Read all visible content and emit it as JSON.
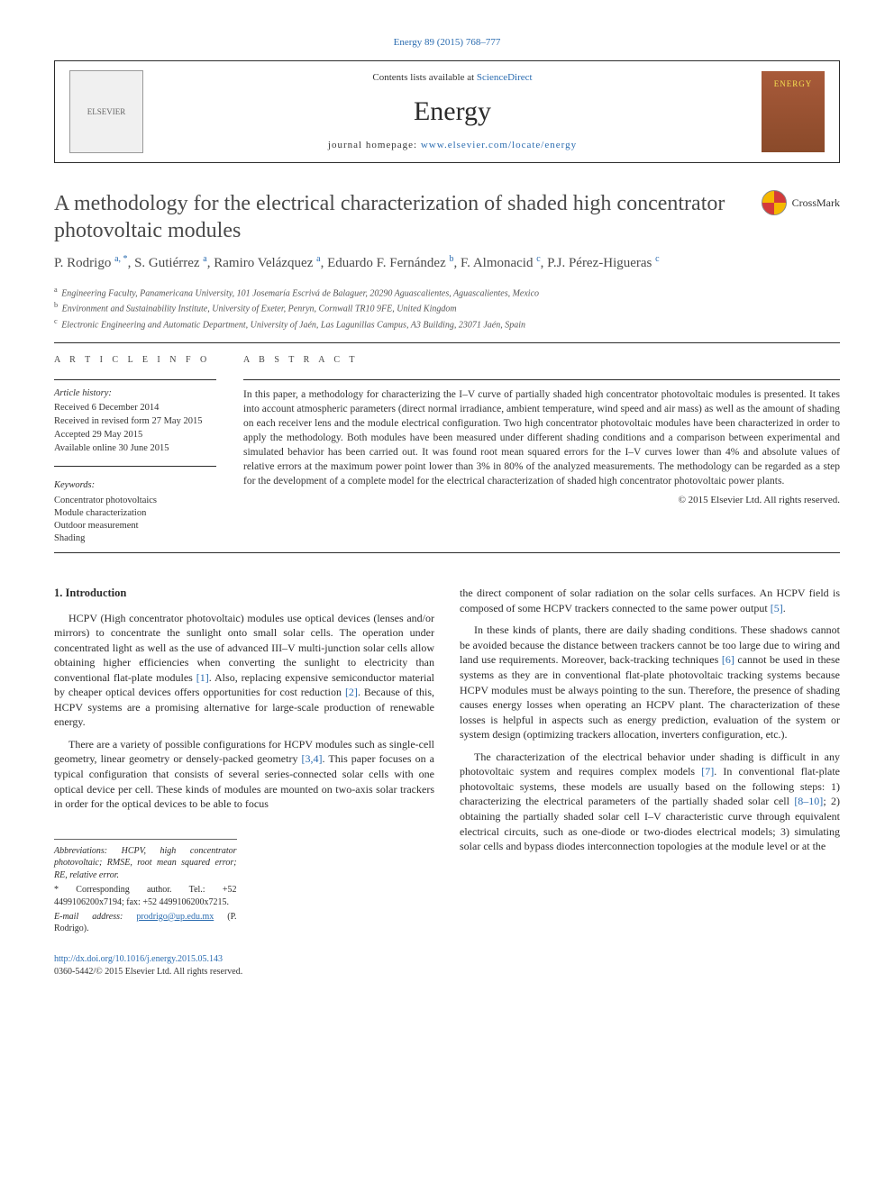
{
  "top_journal_link": "Energy 89 (2015) 768–777",
  "header": {
    "contents_prefix": "Contents lists available at ",
    "contents_link": "ScienceDirect",
    "journal_name": "Energy",
    "homepage_prefix": "journal homepage: ",
    "homepage_url": "www.elsevier.com/locate/energy",
    "publisher_logo_alt": "ELSEVIER"
  },
  "title": "A methodology for the electrical characterization of shaded high concentrator photovoltaic modules",
  "crossmark_label": "CrossMark",
  "authors_html": "P. Rodrigo <sup>a, *</sup>, S. Gutiérrez <sup>a</sup>, Ramiro Velázquez <sup>a</sup>, Eduardo F. Fernández <sup>b</sup>, F. Almonacid <sup>c</sup>, P.J. Pérez-Higueras <sup>c</sup>",
  "affiliations": {
    "a": "Engineering Faculty, Panamericana University, 101 Josemaría Escrivá de Balaguer, 20290 Aguascalientes, Aguascalientes, Mexico",
    "b": "Environment and Sustainability Institute, University of Exeter, Penryn, Cornwall TR10 9FE, United Kingdom",
    "c": "Electronic Engineering and Automatic Department, University of Jaén, Las Lagunillas Campus, A3 Building, 23071 Jaén, Spain"
  },
  "article_info_heading": "A R T I C L E  I N F O",
  "abstract_heading": "A B S T R A C T",
  "history": {
    "label": "Article history:",
    "received": "Received 6 December 2014",
    "revised": "Received in revised form 27 May 2015",
    "accepted": "Accepted 29 May 2015",
    "online": "Available online 30 June 2015"
  },
  "keywords_label": "Keywords:",
  "keywords": [
    "Concentrator photovoltaics",
    "Module characterization",
    "Outdoor measurement",
    "Shading"
  ],
  "abstract": "In this paper, a methodology for characterizing the I–V curve of partially shaded high concentrator photovoltaic modules is presented. It takes into account atmospheric parameters (direct normal irradiance, ambient temperature, wind speed and air mass) as well as the amount of shading on each receiver lens and the module electrical configuration. Two high concentrator photovoltaic modules have been characterized in order to apply the methodology. Both modules have been measured under different shading conditions and a comparison between experimental and simulated behavior has been carried out. It was found root mean squared errors for the I–V curves lower than 4% and absolute values of relative errors at the maximum power point lower than 3% in 80% of the analyzed measurements. The methodology can be regarded as a step for the development of a complete model for the electrical characterization of shaded high concentrator photovoltaic power plants.",
  "copyright": "© 2015 Elsevier Ltd. All rights reserved.",
  "section1_heading": "1. Introduction",
  "col1_p1": "HCPV (High concentrator photovoltaic) modules use optical devices (lenses and/or mirrors) to concentrate the sunlight onto small solar cells. The operation under concentrated light as well as the use of advanced III–V multi-junction solar cells allow obtaining higher efficiencies when converting the sunlight to electricity than conventional flat-plate modules [1]. Also, replacing expensive semiconductor material by cheaper optical devices offers opportunities for cost reduction [2]. Because of this, HCPV systems are a promising alternative for large-scale production of renewable energy.",
  "col1_p2": "There are a variety of possible configurations for HCPV modules such as single-cell geometry, linear geometry or densely-packed geometry [3,4]. This paper focuses on a typical configuration that consists of several series-connected solar cells with one optical device per cell. These kinds of modules are mounted on two-axis solar trackers in order for the optical devices to be able to focus",
  "col2_p1": "the direct component of solar radiation on the solar cells surfaces. An HCPV field is composed of some HCPV trackers connected to the same power output [5].",
  "col2_p2": "In these kinds of plants, there are daily shading conditions. These shadows cannot be avoided because the distance between trackers cannot be too large due to wiring and land use requirements. Moreover, back-tracking techniques [6] cannot be used in these systems as they are in conventional flat-plate photovoltaic tracking systems because HCPV modules must be always pointing to the sun. Therefore, the presence of shading causes energy losses when operating an HCPV plant. The characterization of these losses is helpful in aspects such as energy prediction, evaluation of the system or system design (optimizing trackers allocation, inverters configuration, etc.).",
  "col2_p3": "The characterization of the electrical behavior under shading is difficult in any photovoltaic system and requires complex models [7]. In conventional flat-plate photovoltaic systems, these models are usually based on the following steps: 1) characterizing the electrical parameters of the partially shaded solar cell [8–10]; 2) obtaining the partially shaded solar cell I–V characteristic curve through equivalent electrical circuits, such as one-diode or two-diodes electrical models; 3) simulating solar cells and bypass diodes interconnection topologies at the module level or at the",
  "footnotes": {
    "abbrev": "Abbreviations: HCPV, high concentrator photovoltaic; RMSE, root mean squared error; RE, relative error.",
    "corresponding": "* Corresponding author. Tel.: +52 4499106200x7194; fax: +52 4499106200x7215.",
    "email_label": "E-mail address:",
    "email": "prodrigo@up.edu.mx",
    "email_person": "(P. Rodrigo)."
  },
  "footer": {
    "doi": "http://dx.doi.org/10.1016/j.energy.2015.05.143",
    "issn_line": "0360-5442/© 2015 Elsevier Ltd. All rights reserved."
  },
  "colors": {
    "link": "#2b6cb0",
    "text": "#2b2b2b",
    "muted": "#555555"
  }
}
